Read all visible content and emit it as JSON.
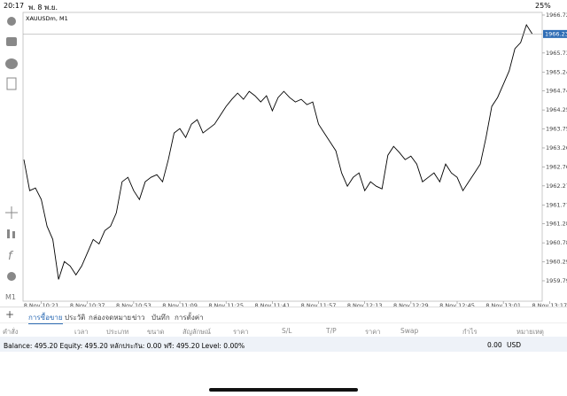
{
  "status_bar": {
    "time": "20:17",
    "date": "พ. 8 พ.ย.",
    "battery": "25%"
  },
  "chart_data": {
    "type": "line",
    "title": "XAUUSDm, M1",
    "timeframe": "M1",
    "color": "#000000",
    "categories": [
      null,
      null,
      null,
      "8 Nov 10:21",
      null,
      null,
      null,
      null,
      null,
      null,
      null,
      "8 Nov 10:37",
      null,
      null,
      null,
      null,
      null,
      null,
      null,
      "8 Nov 10:53",
      null,
      null,
      null,
      null,
      null,
      null,
      null,
      "8 Nov 11:09",
      null,
      null,
      null,
      null,
      null,
      null,
      null,
      "8 Nov 11:25",
      null,
      null,
      null,
      null,
      null,
      null,
      null,
      "8 Nov 11:41",
      null,
      null,
      null,
      null,
      null,
      null,
      null,
      "8 Nov 11:57",
      null,
      null,
      null,
      null,
      null,
      null,
      null,
      "8 Nov 12:13",
      null,
      null,
      null,
      null,
      null,
      null,
      null,
      "8 Nov 12:29",
      null,
      null,
      null,
      null,
      null,
      null,
      null,
      "8 Nov 12:45",
      null,
      null,
      null,
      null,
      null,
      null,
      null,
      "8 Nov 13:01",
      null,
      null,
      null,
      null,
      null,
      null,
      null,
      "8 Nov 13:17"
    ],
    "values": [
      1962.955,
      1962.145,
      1962.215,
      1961.914,
      1961.22,
      1960.873,
      1959.832,
      1960.295,
      1960.179,
      1959.948,
      1960.179,
      1960.526,
      1960.873,
      1960.757,
      1961.104,
      1961.22,
      1961.567,
      1962.377,
      1962.492,
      1962.145,
      1961.914,
      1962.377,
      1962.492,
      1962.562,
      1962.377,
      1962.955,
      1963.649,
      1963.764,
      1963.533,
      1963.88,
      1963.996,
      1963.649,
      1963.764,
      1963.88,
      1964.111,
      1964.343,
      1964.528,
      1964.69,
      1964.528,
      1964.736,
      1964.62,
      1964.458,
      1964.62,
      1964.227,
      1964.574,
      1964.736,
      1964.574,
      1964.458,
      1964.528,
      1964.389,
      1964.458,
      1963.88,
      1963.649,
      1963.417,
      1963.186,
      1962.608,
      1962.261,
      1962.492,
      1962.608,
      1962.145,
      1962.377,
      1962.261,
      1962.192,
      1963.07,
      1963.302,
      1963.14,
      1962.955,
      1963.047,
      1962.839,
      1962.377,
      1962.492,
      1962.608,
      1962.377,
      1962.839,
      1962.608,
      1962.492,
      1962.145,
      1962.377,
      1962.608,
      1962.839,
      1963.533,
      1964.343,
      1964.574,
      1964.921,
      1965.268,
      1965.846,
      1966.008,
      1966.471,
      1966.231,
      null,
      null,
      null
    ],
    "ylim": [
      1959.263,
      1966.794
    ],
    "yticks": [
      1966.725,
      1965.735,
      1965.24,
      1964.745,
      1964.25,
      1963.755,
      1963.26,
      1962.765,
      1962.27,
      1961.775,
      1961.28,
      1960.785,
      1960.29,
      1959.795
    ],
    "current_price": 1966.231,
    "current_price_color": "#2f6db5"
  },
  "tabs": [
    "การซื้อขาย",
    "ประวัติ",
    "กล่องจดหมาย",
    "ข่าว",
    "บันทึก",
    "การตั้งค่า"
  ],
  "columns": [
    "คำสั่ง",
    "เวลา",
    "ประเภท",
    "ขนาด",
    "สัญลักษณ์",
    "ราคา",
    "S/L",
    "T/P",
    "ราคา",
    "Swap",
    "กำไร",
    "หมายเหตุ"
  ],
  "account": {
    "summary": "Balance: 495.20 Equity: 495.20 หลักประกัน: 0.00 ฟรี: 495.20 Level: 0.00%",
    "profit": "0.00",
    "currency": "USD"
  }
}
